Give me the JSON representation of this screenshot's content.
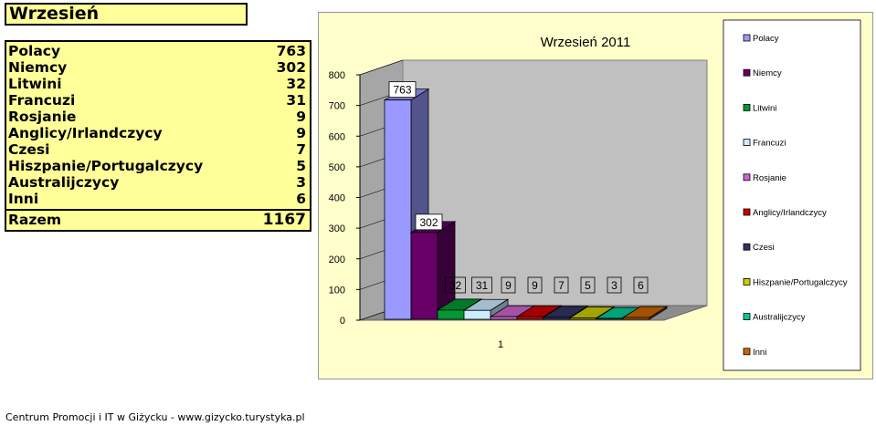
{
  "sheet_title": "Wrzesień",
  "table": {
    "rows": [
      {
        "name": "Polacy",
        "value": "763"
      },
      {
        "name": "Niemcy",
        "value": "302"
      },
      {
        "name": "Litwini",
        "value": "32"
      },
      {
        "name": "Francuzi",
        "value": "31"
      },
      {
        "name": "Rosjanie",
        "value": "9"
      },
      {
        "name": "Anglicy/Irlandczycy",
        "value": "9"
      },
      {
        "name": "Czesi",
        "value": "7"
      },
      {
        "name": "Hiszpanie/Portugalczycy",
        "value": "5"
      },
      {
        "name": "Australijczycy",
        "value": "3"
      },
      {
        "name": "Inni",
        "value": "6"
      }
    ],
    "total": {
      "name": "Razem",
      "value": "1167"
    }
  },
  "footer": "Centrum Promocji i IT w Giżycku - www.gizycko.turystyka.pl",
  "chart_data": {
    "type": "bar",
    "title": "Wrzesień 2011",
    "categories": [
      "1"
    ],
    "ylim": [
      0,
      800
    ],
    "yticks": [
      0,
      100,
      200,
      300,
      400,
      500,
      600,
      700,
      800
    ],
    "grid": false,
    "legend_position": "right",
    "series": [
      {
        "name": "Polacy",
        "values": [
          763
        ],
        "color": "#9999ff"
      },
      {
        "name": "Niemcy",
        "values": [
          302
        ],
        "color": "#660066"
      },
      {
        "name": "Litwini",
        "values": [
          32
        ],
        "color": "#009933"
      },
      {
        "name": "Francuzi",
        "values": [
          31
        ],
        "color": "#ccecff"
      },
      {
        "name": "Rosjanie",
        "values": [
          9
        ],
        "color": "#cc66cc"
      },
      {
        "name": "Anglicy/Irlandczycy",
        "values": [
          9
        ],
        "color": "#cc0000"
      },
      {
        "name": "Czesi",
        "values": [
          7
        ],
        "color": "#333366"
      },
      {
        "name": "Hiszpanie/Portugalczycy",
        "values": [
          5
        ],
        "color": "#cccc00"
      },
      {
        "name": "Australijczycy",
        "values": [
          3
        ],
        "color": "#00cc99"
      },
      {
        "name": "Inni",
        "values": [
          6
        ],
        "color": "#cc6600"
      }
    ]
  }
}
